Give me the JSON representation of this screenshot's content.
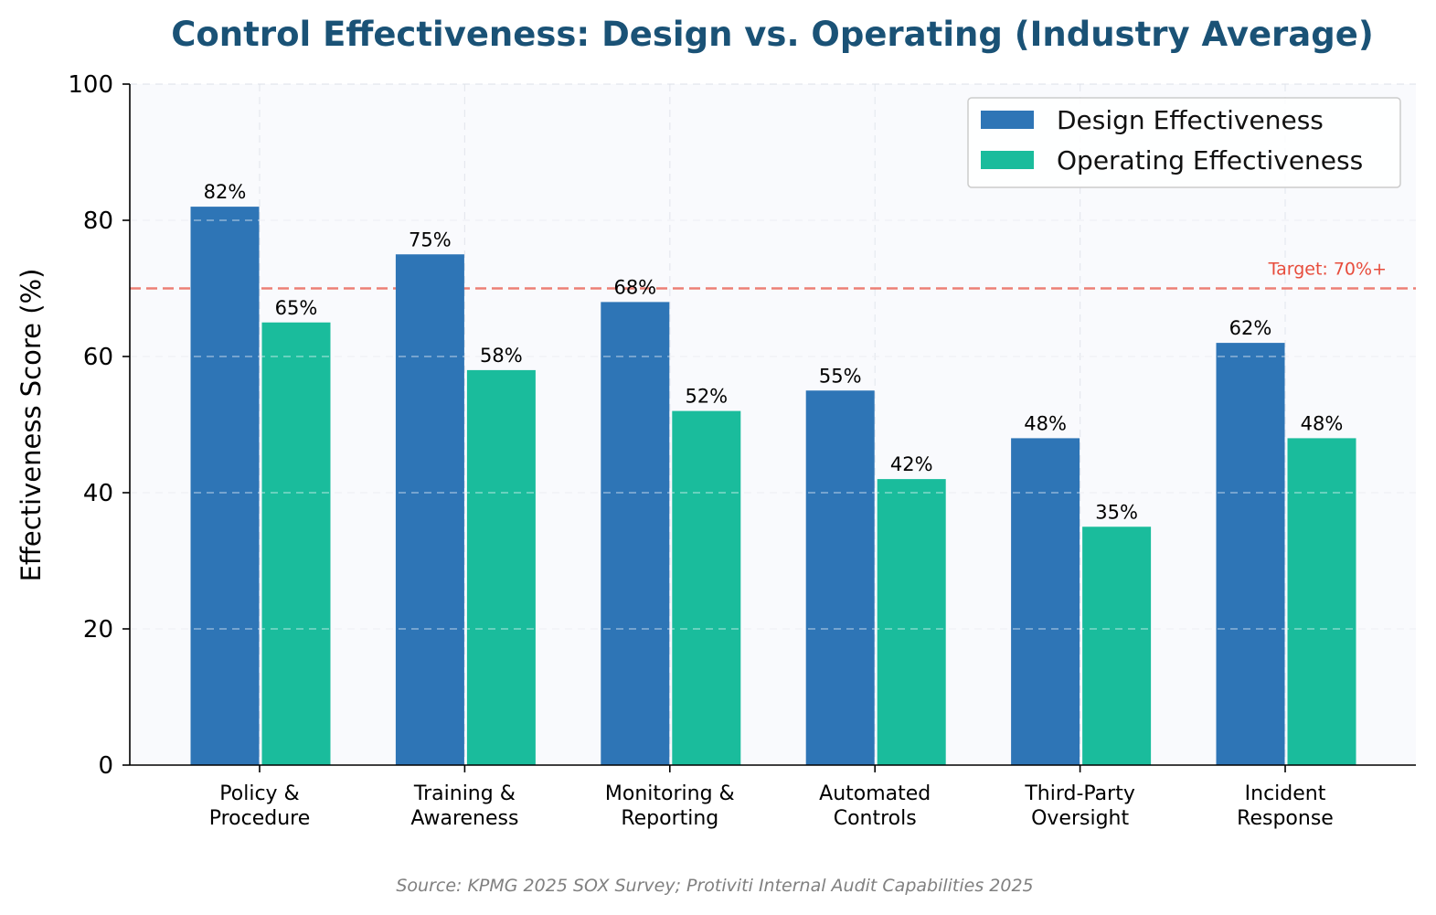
{
  "chart_data": {
    "type": "bar",
    "title": "Control Effectiveness: Design vs. Operating (Industry Average)",
    "ylabel": "Effectiveness Score (%)",
    "ylim": [
      0,
      100
    ],
    "yticks": [
      "0",
      "20",
      "40",
      "60",
      "80",
      "100"
    ],
    "grid": true,
    "legend_position": "top-right",
    "categories": [
      [
        "Policy &",
        "Procedure"
      ],
      [
        "Training &",
        "Awareness"
      ],
      [
        "Monitoring &",
        "Reporting"
      ],
      [
        "Automated",
        "Controls"
      ],
      [
        "Third-Party",
        "Oversight"
      ],
      [
        "Incident",
        "Response"
      ]
    ],
    "series": [
      {
        "name": "Design Effectiveness",
        "color": "#2e75b6",
        "values": [
          82,
          75,
          68,
          55,
          48,
          62
        ],
        "labels": [
          "82%",
          "75%",
          "68%",
          "55%",
          "48%",
          "62%"
        ]
      },
      {
        "name": "Operating Effectiveness",
        "color": "#1abc9c",
        "values": [
          65,
          58,
          52,
          42,
          35,
          48
        ],
        "labels": [
          "65%",
          "58%",
          "52%",
          "42%",
          "35%",
          "48%"
        ]
      }
    ],
    "target": {
      "value": 70,
      "label": "Target: 70%+",
      "color": "#e74c3c"
    },
    "source": "Source: KPMG 2025 SOX Survey; Protiviti Internal Audit Capabilities 2025"
  }
}
